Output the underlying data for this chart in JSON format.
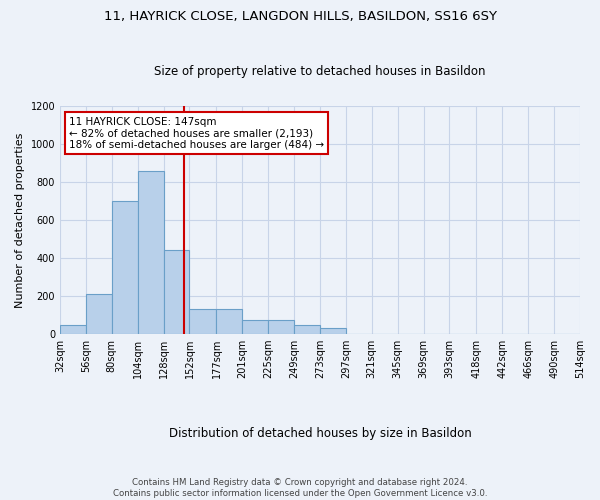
{
  "title1": "11, HAYRICK CLOSE, LANGDON HILLS, BASILDON, SS16 6SY",
  "title2": "Size of property relative to detached houses in Basildon",
  "xlabel": "Distribution of detached houses by size in Basildon",
  "ylabel": "Number of detached properties",
  "footnote": "Contains HM Land Registry data © Crown copyright and database right 2024.\nContains public sector information licensed under the Open Government Licence v3.0.",
  "bin_edges": [
    32,
    56,
    80,
    104,
    128,
    152,
    177,
    201,
    225,
    249,
    273,
    297,
    321,
    345,
    369,
    393,
    418,
    442,
    466,
    490,
    514
  ],
  "bin_labels": [
    "32sqm",
    "56sqm",
    "80sqm",
    "104sqm",
    "128sqm",
    "152sqm",
    "177sqm",
    "201sqm",
    "225sqm",
    "249sqm",
    "273sqm",
    "297sqm",
    "321sqm",
    "345sqm",
    "369sqm",
    "393sqm",
    "418sqm",
    "442sqm",
    "466sqm",
    "490sqm",
    "514sqm"
  ],
  "bar_heights": [
    50,
    210,
    700,
    860,
    440,
    130,
    130,
    75,
    75,
    50,
    30,
    0,
    0,
    0,
    0,
    0,
    0,
    0,
    0,
    0
  ],
  "bar_color": "#b8d0ea",
  "bar_edge_color": "#6a9fc8",
  "property_line_x": 147,
  "property_line_color": "#cc0000",
  "annotation_text": "11 HAYRICK CLOSE: 147sqm\n← 82% of detached houses are smaller (2,193)\n18% of semi-detached houses are larger (484) →",
  "annotation_box_color": "#ffffff",
  "annotation_box_edge": "#cc0000",
  "ylim": [
    0,
    1200
  ],
  "yticks": [
    0,
    200,
    400,
    600,
    800,
    1000,
    1200
  ],
  "background_color": "#edf2f9",
  "grid_color": "#c8d4e8",
  "title1_fontsize": 9.5,
  "title2_fontsize": 8.5,
  "ylabel_fontsize": 8,
  "xlabel_fontsize": 8.5,
  "tick_fontsize": 7,
  "annot_fontsize": 7.5,
  "footnote_fontsize": 6.2
}
